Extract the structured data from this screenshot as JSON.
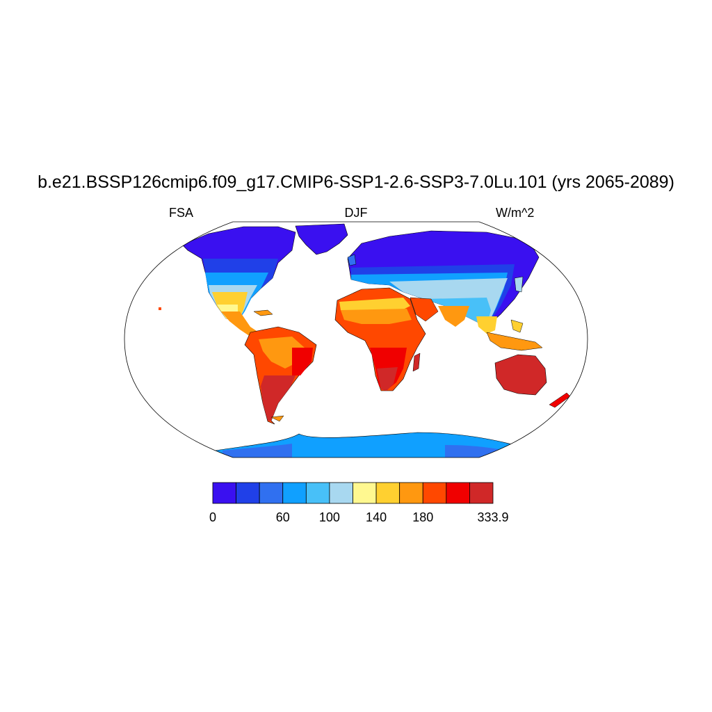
{
  "title": "b.e21.BSSP126cmip6.f09_g17.CMIP6-SSP1-2.6-SSP3-7.0Lu.101 (yrs 2065-2089)",
  "subtitle_left": "FSA",
  "subtitle_center": "DJF",
  "subtitle_right": "W/m^2",
  "projection": "Robinson",
  "colorbar": {
    "colors": [
      "#3a10f0",
      "#2040e8",
      "#3070f0",
      "#10a0ff",
      "#48c0f8",
      "#a8d8f0",
      "#fff890",
      "#ffd030",
      "#ff9810",
      "#ff4800",
      "#f00000",
      "#d02828"
    ],
    "tick_labels": [
      "0",
      "60",
      "100",
      "140",
      "180",
      "333.9"
    ]
  },
  "map_colors": {
    "ocean": "#ffffff",
    "coast": "#000000",
    "frame": "#000000"
  }
}
